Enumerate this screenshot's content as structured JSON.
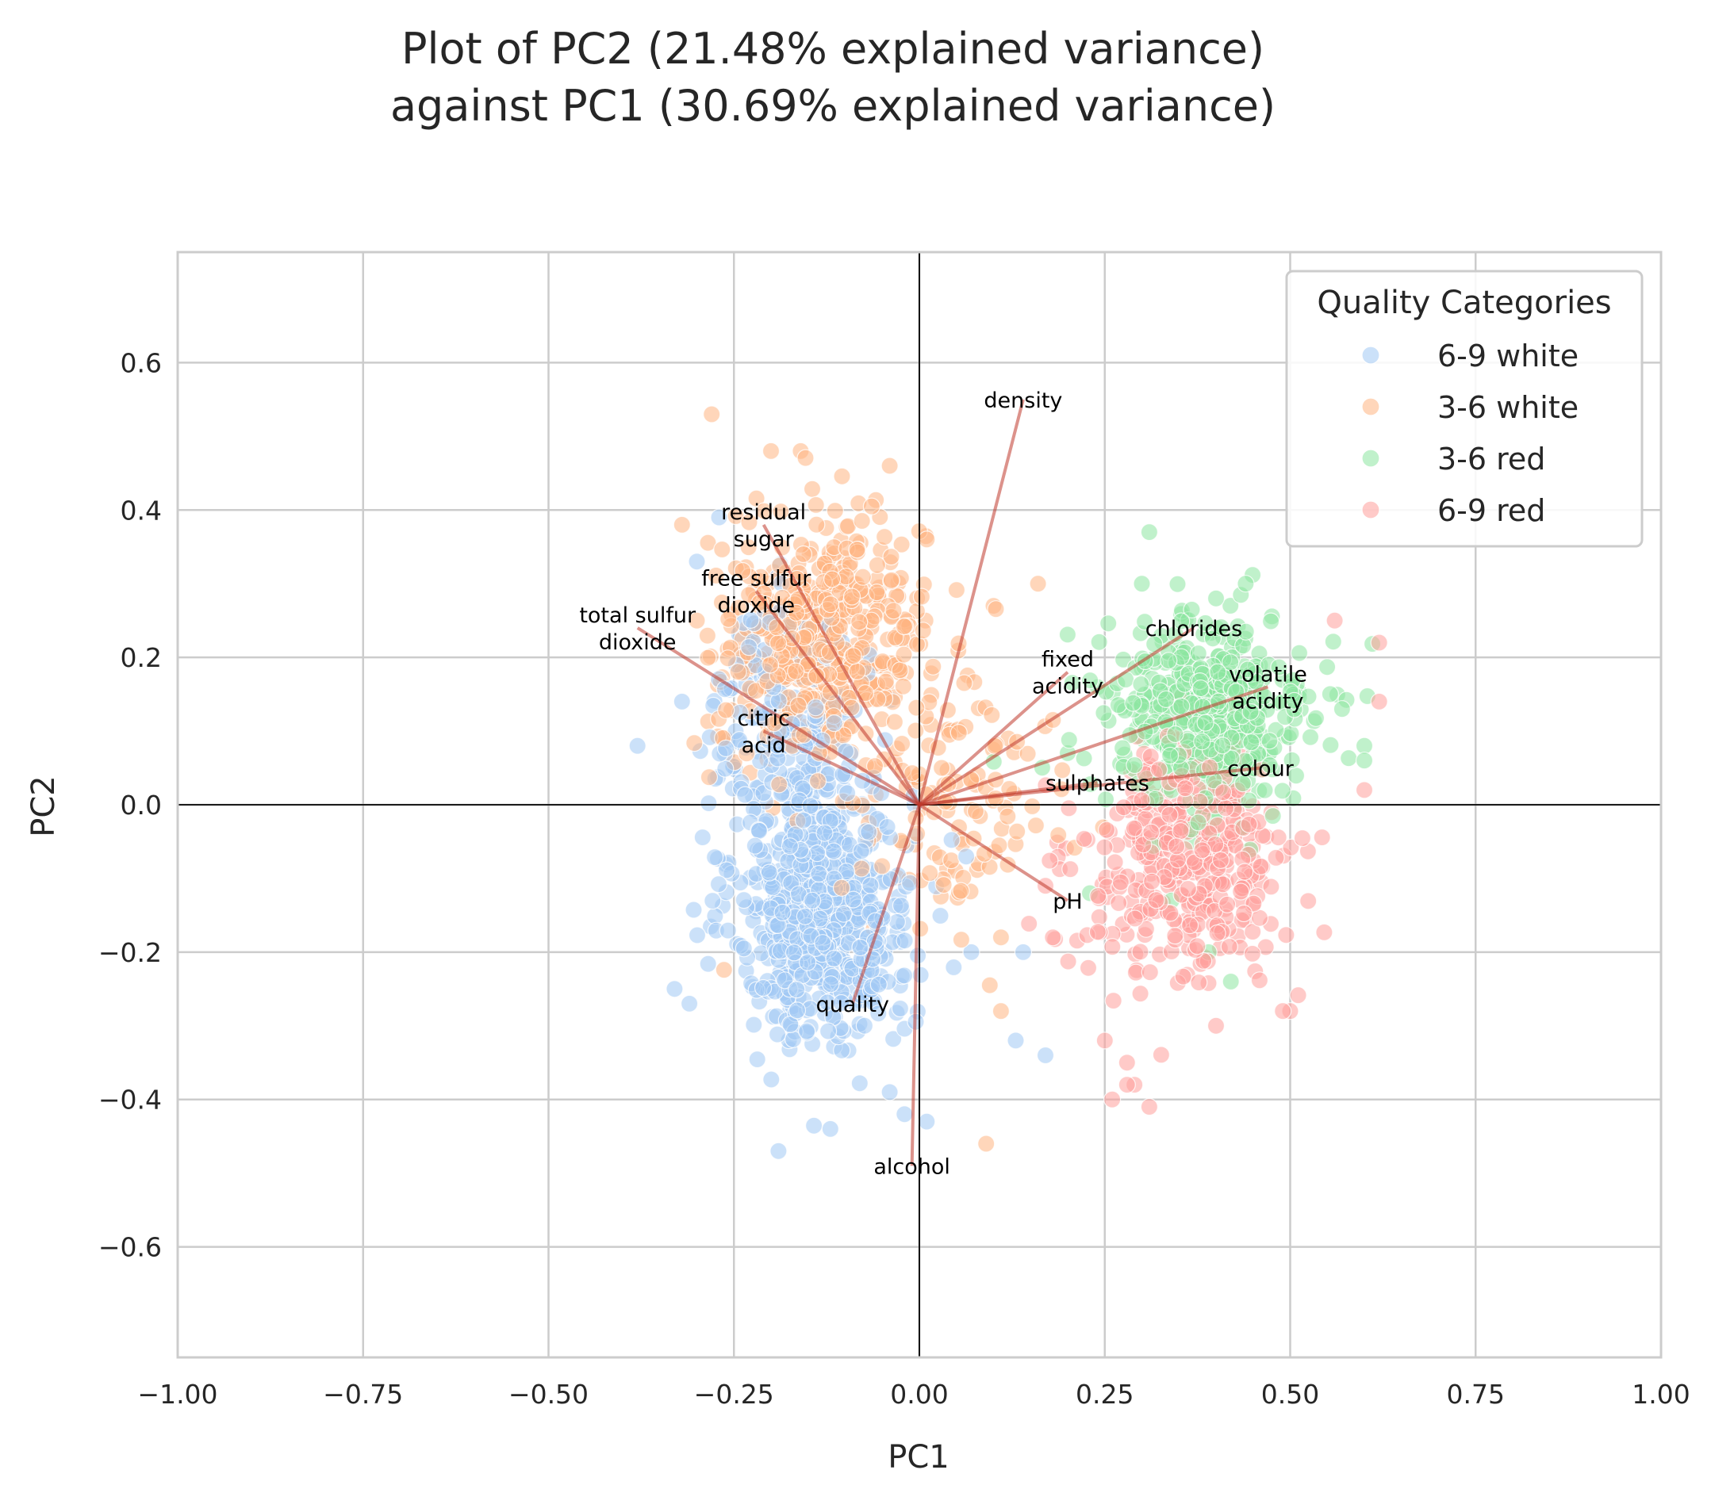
{
  "chart_data": {
    "type": "scatter",
    "title_lines": [
      "Plot of PC2 (21.48% explained variance)",
      "against PC1 (30.69% explained variance)"
    ],
    "xlabel": "PC1",
    "ylabel": "PC2",
    "xlim": [
      -1.0,
      1.0
    ],
    "ylim": [
      -0.75,
      0.75
    ],
    "xticks": [
      -1.0,
      -0.75,
      -0.5,
      -0.25,
      0.0,
      0.25,
      0.5,
      0.75,
      1.0
    ],
    "xtick_labels": [
      "−1.00",
      "−0.75",
      "−0.50",
      "−0.25",
      "0.00",
      "0.25",
      "0.50",
      "0.75",
      "1.00"
    ],
    "yticks": [
      0.6,
      0.4,
      0.2,
      0.0,
      -0.2,
      -0.4,
      -0.6
    ],
    "ytick_labels": [
      "0.6",
      "0.4",
      "0.2",
      "0.0",
      "−0.2",
      "−0.4",
      "−0.6"
    ],
    "grid": true,
    "legend": {
      "title": "Quality Categories",
      "position": "top-right",
      "entries": [
        "6-9 white",
        "3-6 white",
        "3-6 red",
        "6-9 red"
      ]
    },
    "series_colors": {
      "6-9 white": "#a1c9f4",
      "3-6 white": "#ffb482",
      "3-6 red": "#8de5a1",
      "6-9 red": "#ff9f9b"
    },
    "series": [
      {
        "name": "6-9 white",
        "clusters": [
          {
            "cx": -0.13,
            "cy": -0.14,
            "sx": 0.06,
            "sy": 0.09,
            "n": 650
          },
          {
            "cx": -0.18,
            "cy": 0.12,
            "sx": 0.05,
            "sy": 0.08,
            "n": 180
          }
        ],
        "points": [
          [
            -0.38,
            0.08
          ],
          [
            -0.33,
            -0.25
          ],
          [
            -0.31,
            -0.27
          ],
          [
            -0.19,
            -0.47
          ],
          [
            -0.12,
            -0.44
          ],
          [
            0.01,
            -0.43
          ],
          [
            0.13,
            -0.32
          ],
          [
            0.17,
            -0.34
          ],
          [
            0.14,
            -0.2
          ],
          [
            0.07,
            -0.2
          ],
          [
            -0.3,
            0.33
          ],
          [
            -0.27,
            0.39
          ],
          [
            -0.32,
            0.14
          ],
          [
            -0.04,
            -0.39
          ],
          [
            -0.02,
            -0.42
          ]
        ]
      },
      {
        "name": "3-6 white",
        "clusters": [
          {
            "cx": -0.13,
            "cy": 0.22,
            "sx": 0.07,
            "sy": 0.08,
            "n": 520
          },
          {
            "cx": 0.05,
            "cy": 0.0,
            "sx": 0.08,
            "sy": 0.08,
            "n": 120
          }
        ],
        "points": [
          [
            -0.28,
            0.53
          ],
          [
            -0.16,
            0.48
          ],
          [
            -0.04,
            0.46
          ],
          [
            -0.2,
            0.48
          ],
          [
            0.01,
            0.36
          ],
          [
            0.16,
            0.3
          ],
          [
            0.1,
            0.27
          ],
          [
            0.12,
            0.09
          ],
          [
            0.11,
            -0.18
          ],
          [
            0.09,
            -0.46
          ],
          [
            0.11,
            -0.28
          ],
          [
            -0.3,
            0.25
          ],
          [
            -0.32,
            0.38
          ],
          [
            0.03,
            0.05
          ],
          [
            0.08,
            -0.08
          ]
        ]
      },
      {
        "name": "3-6 red",
        "clusters": [
          {
            "cx": 0.39,
            "cy": 0.12,
            "sx": 0.07,
            "sy": 0.07,
            "n": 450
          }
        ],
        "points": [
          [
            0.31,
            0.37
          ],
          [
            0.3,
            0.3
          ],
          [
            0.44,
            0.3
          ],
          [
            0.4,
            0.28
          ],
          [
            0.6,
            0.08
          ],
          [
            0.6,
            0.06
          ],
          [
            0.57,
            0.13
          ],
          [
            0.42,
            -0.24
          ],
          [
            0.23,
            -0.12
          ],
          [
            0.2,
            0.07
          ],
          [
            0.34,
            -0.13
          ],
          [
            0.39,
            -0.2
          ]
        ]
      },
      {
        "name": "6-9 red",
        "clusters": [
          {
            "cx": 0.36,
            "cy": -0.08,
            "sx": 0.07,
            "sy": 0.08,
            "n": 380
          }
        ],
        "points": [
          [
            0.62,
            0.22
          ],
          [
            0.62,
            0.14
          ],
          [
            0.6,
            0.02
          ],
          [
            0.56,
            0.25
          ],
          [
            0.49,
            -0.28
          ],
          [
            0.5,
            -0.28
          ],
          [
            0.31,
            -0.41
          ],
          [
            0.25,
            -0.32
          ],
          [
            0.26,
            -0.4
          ],
          [
            0.28,
            -0.38
          ],
          [
            0.28,
            -0.35
          ],
          [
            0.4,
            -0.3
          ],
          [
            0.18,
            -0.18
          ],
          [
            0.17,
            -0.11
          ],
          [
            0.29,
            -0.38
          ]
        ]
      }
    ],
    "loadings": [
      {
        "name": "density",
        "label": [
          "density"
        ],
        "x": 0.14,
        "y": 0.55
      },
      {
        "name": "residual-sugar",
        "label": [
          "residual",
          "sugar"
        ],
        "x": -0.21,
        "y": 0.38
      },
      {
        "name": "free-sulfur-dioxide",
        "label": [
          "free sulfur",
          "dioxide"
        ],
        "x": -0.22,
        "y": 0.29
      },
      {
        "name": "total-sulfur-dioxide",
        "label": [
          "total sulfur",
          "dioxide"
        ],
        "x": -0.38,
        "y": 0.24
      },
      {
        "name": "citric-acid",
        "label": [
          "citric",
          "acid"
        ],
        "x": -0.21,
        "y": 0.1
      },
      {
        "name": "fixed-acidity",
        "label": [
          "fixed",
          "acidity"
        ],
        "x": 0.2,
        "y": 0.18
      },
      {
        "name": "chlorides",
        "label": [
          "chlorides"
        ],
        "x": 0.37,
        "y": 0.24
      },
      {
        "name": "volatile-acidity",
        "label": [
          "volatile",
          "acidity"
        ],
        "x": 0.47,
        "y": 0.16
      },
      {
        "name": "colour",
        "label": [
          "colour"
        ],
        "x": 0.46,
        "y": 0.05
      },
      {
        "name": "sulphates",
        "label": [
          "sulphates"
        ],
        "x": 0.24,
        "y": 0.03
      },
      {
        "name": "ph",
        "label": [
          "pH"
        ],
        "x": 0.2,
        "y": -0.13
      },
      {
        "name": "quality",
        "label": [
          "quality"
        ],
        "x": -0.09,
        "y": -0.27
      },
      {
        "name": "alcohol",
        "label": [
          "alcohol"
        ],
        "x": -0.01,
        "y": -0.49
      }
    ]
  }
}
